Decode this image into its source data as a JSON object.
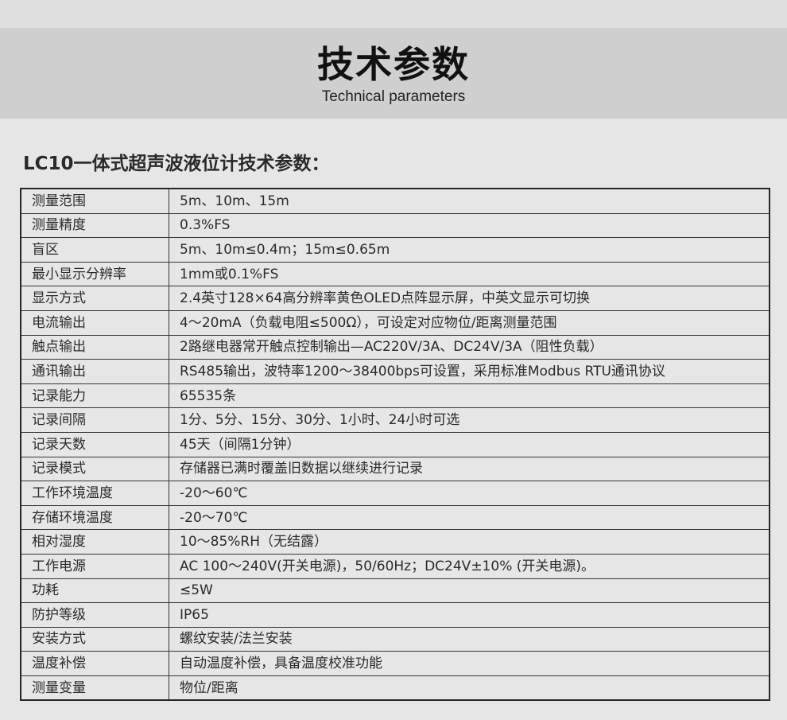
{
  "header": {
    "title": "技术参数",
    "subtitle": "Technical parameters"
  },
  "section_title": "LC10一体式超声波液位计技术参数：",
  "rows": [
    {
      "label": "测量范围",
      "value": "5m、10m、15m"
    },
    {
      "label": "测量精度",
      "value": "0.3%FS"
    },
    {
      "label": "盲区",
      "value": "5m、10m≤0.4m；15m≤0.65m"
    },
    {
      "label": "最小显示分辨率",
      "value": "1mm或0.1%FS"
    },
    {
      "label": "显示方式",
      "value": "2.4英寸128×64高分辨率黄色OLED点阵显示屏，中英文显示可切换"
    },
    {
      "label": "电流输出",
      "value": "4～20mA（负载电阻≤500Ω），可设定对应物位/距离测量范围"
    },
    {
      "label": "触点输出",
      "value": "2路继电器常开触点控制输出—AC220V/3A、DC24V/3A（阻性负载）"
    },
    {
      "label": "通讯输出",
      "value": "RS485输出，波特率1200～38400bps可设置，采用标准Modbus RTU通讯协议"
    },
    {
      "label": "记录能力",
      "value": "65535条"
    },
    {
      "label": "记录间隔",
      "value": "1分、5分、15分、30分、1小时、24小时可选"
    },
    {
      "label": "记录天数",
      "value": "45天（间隔1分钟）"
    },
    {
      "label": "记录模式",
      "value": "存储器已满时覆盖旧数据以继续进行记录"
    },
    {
      "label": "工作环境温度",
      "value": "-20～60℃"
    },
    {
      "label": "存储环境温度",
      "value": "-20～70℃"
    },
    {
      "label": "相对湿度",
      "value": "10～85%RH（无结露）"
    },
    {
      "label": "工作电源",
      "value": "AC 100～240V(开关电源)，50/60Hz；DC24V±10% (开关电源)。"
    },
    {
      "label": "功耗",
      "value": "≤5W"
    },
    {
      "label": "防护等级",
      "value": "IP65"
    },
    {
      "label": "安装方式",
      "value": "螺纹安装/法兰安装"
    },
    {
      "label": "温度补偿",
      "value": "自动温度补偿，具备温度校准功能"
    },
    {
      "label": "测量变量",
      "value": "物位/距离"
    }
  ]
}
